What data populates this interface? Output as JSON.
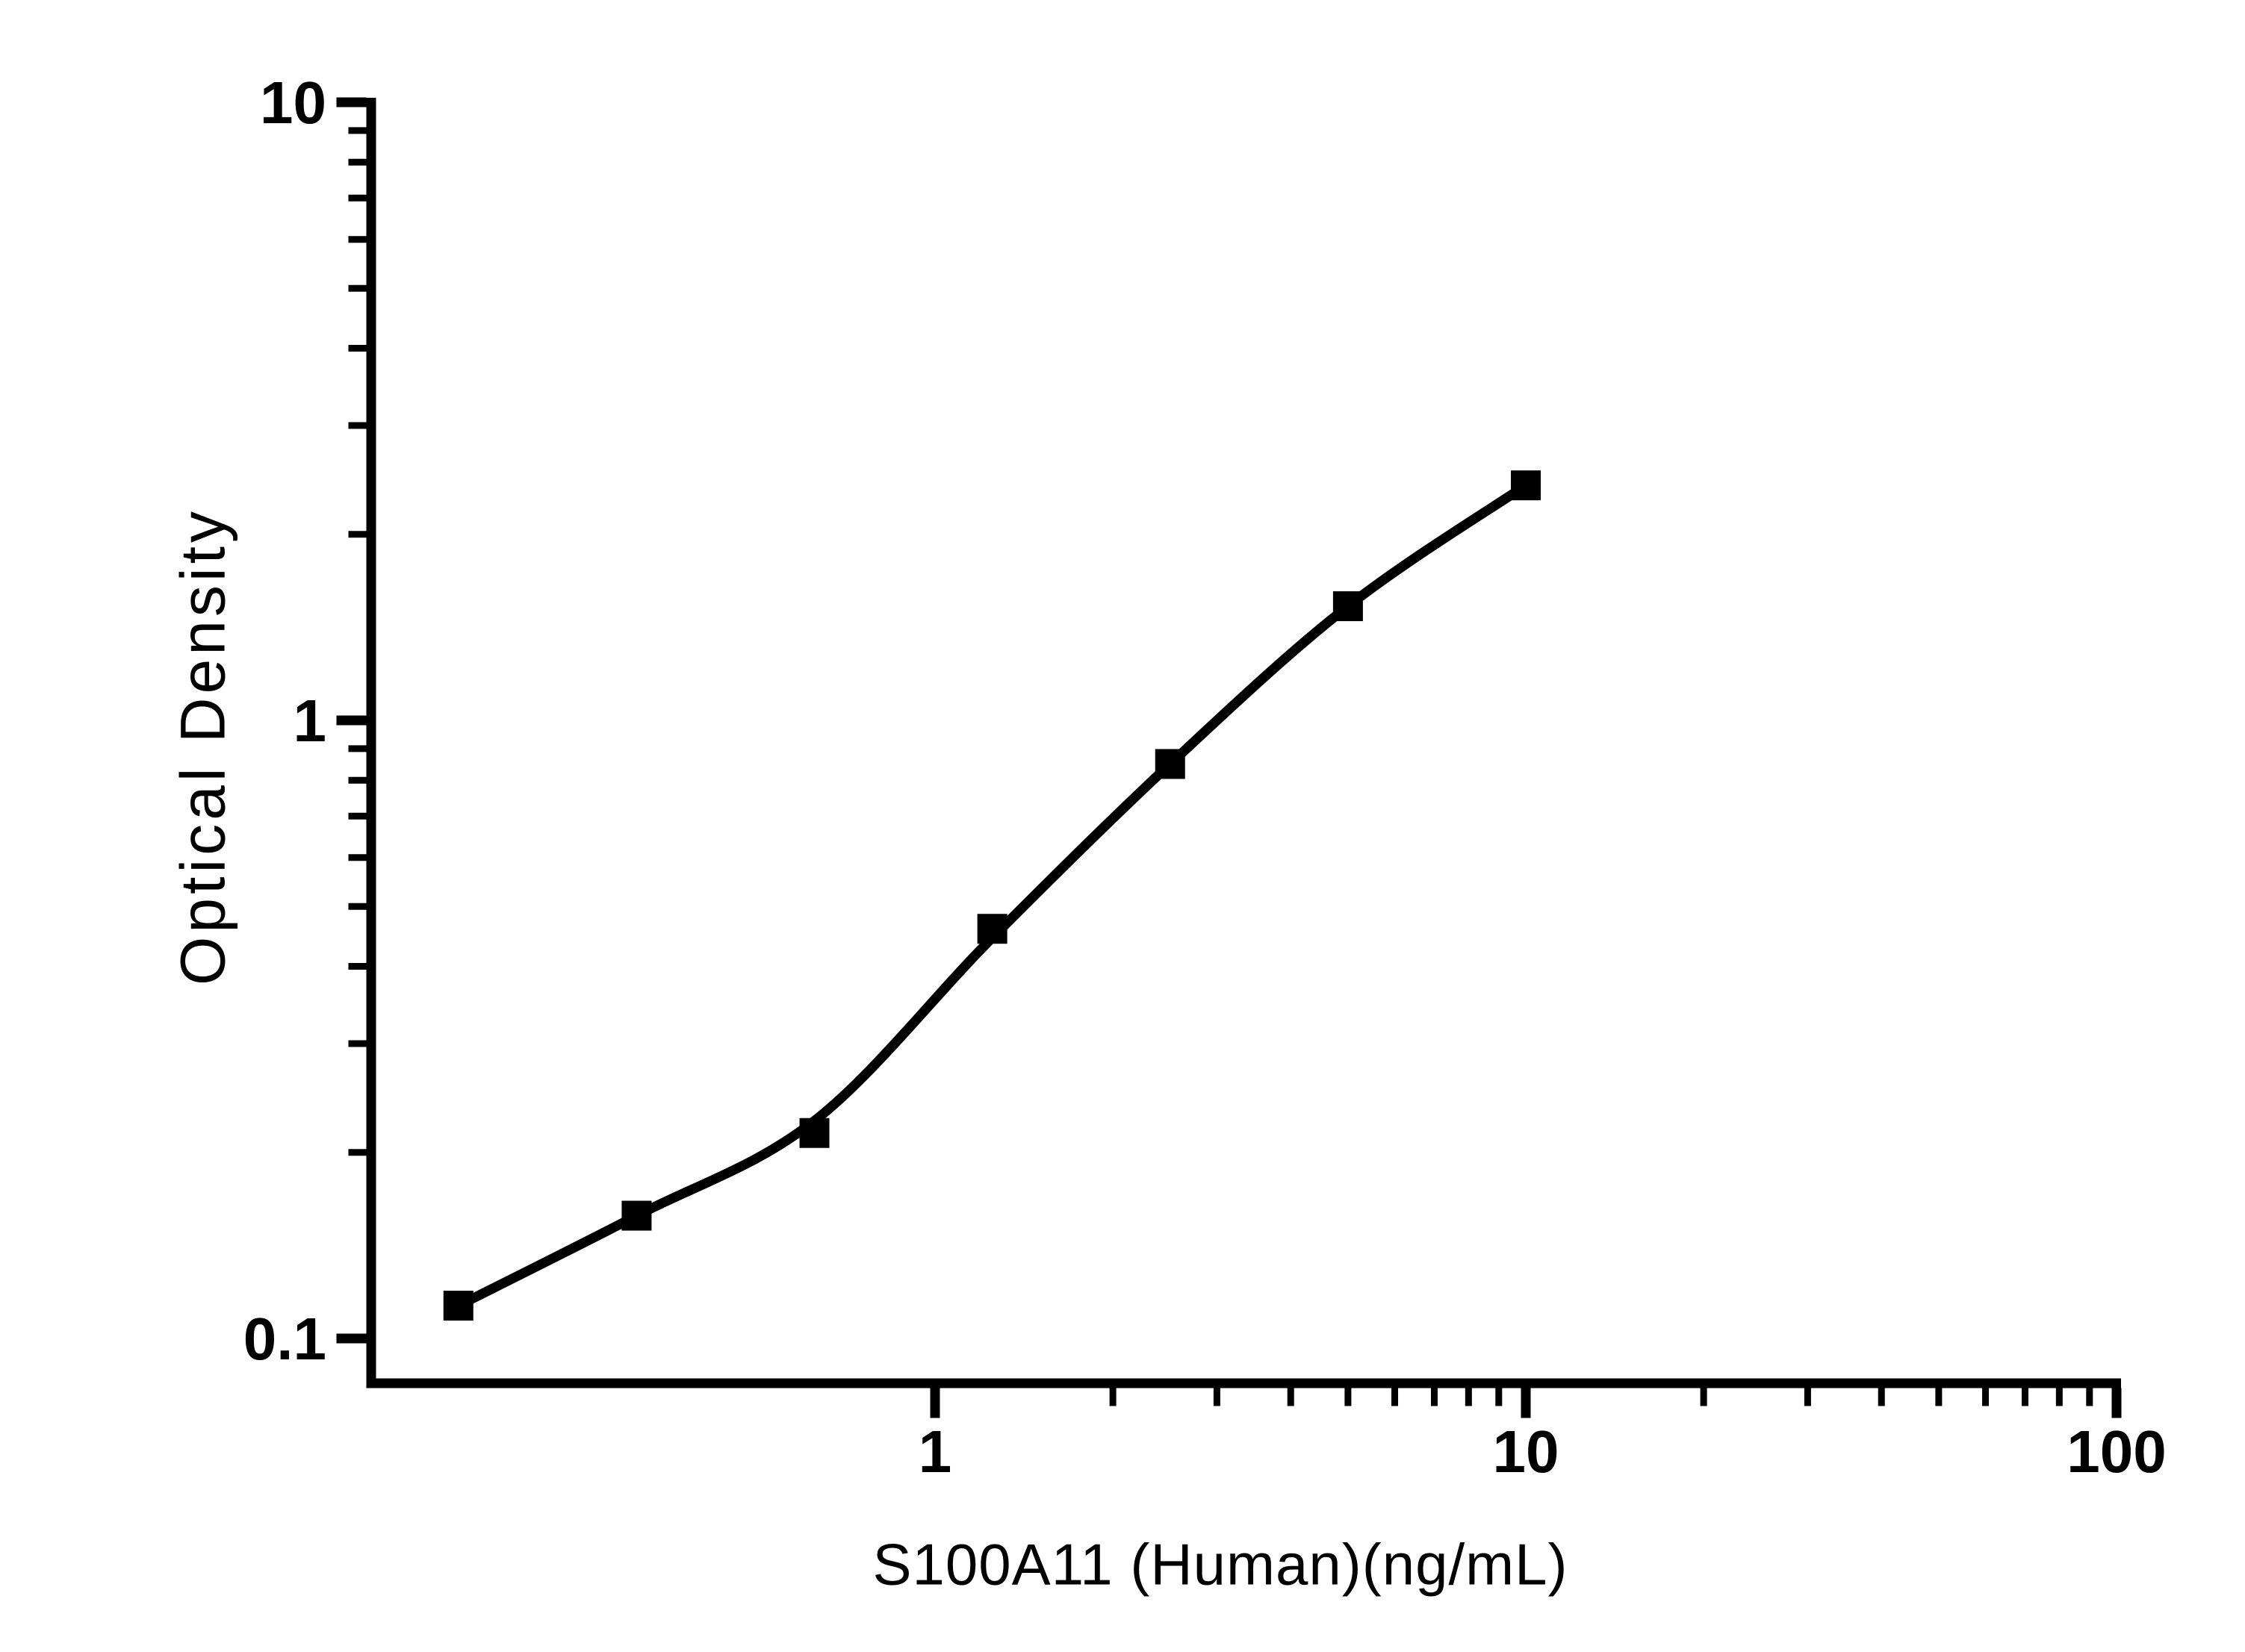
{
  "figure": {
    "background": "#ffffff",
    "ink_color": "#000000"
  },
  "chart_data": {
    "type": "scatter",
    "title": "",
    "xlabel": "S100A11 (Human)(ng/mL)",
    "ylabel": "Optical Density",
    "x_scale": "log",
    "y_scale": "log",
    "xlim": [
      0.111,
      101
    ],
    "ylim": [
      0.085,
      10
    ],
    "grid": false,
    "legend": null,
    "marker": "filled-square",
    "line_color": "#000000",
    "marker_color": "#000000",
    "x_major_ticks": [
      1,
      10,
      100
    ],
    "x_tick_labels": [
      "1",
      "10",
      "100"
    ],
    "x_minor_ticks": [
      2,
      3,
      4,
      5,
      6,
      7,
      8,
      9,
      20,
      30,
      40,
      50,
      60,
      70,
      80,
      90
    ],
    "y_major_ticks": [
      10,
      1,
      0.1
    ],
    "y_tick_labels": [
      "10",
      "1",
      "0.1"
    ],
    "y_minor_ticks": [
      9,
      8,
      7,
      6,
      5,
      4,
      3,
      2,
      0.9,
      0.8,
      0.7,
      0.6,
      0.5,
      0.4,
      0.3,
      0.2
    ],
    "points": [
      {
        "x": 0.156,
        "y": 0.113
      },
      {
        "x": 0.3125,
        "y": 0.158
      },
      {
        "x": 0.625,
        "y": 0.215
      },
      {
        "x": 1.25,
        "y": 0.46
      },
      {
        "x": 2.5,
        "y": 0.85
      },
      {
        "x": 5,
        "y": 1.53
      },
      {
        "x": 10,
        "y": 2.4
      }
    ],
    "fit_curve_points": [
      {
        "x": 0.156,
        "y": 0.113
      },
      {
        "x": 0.3125,
        "y": 0.158
      },
      {
        "x": 0.625,
        "y": 0.225
      },
      {
        "x": 1.25,
        "y": 0.445
      },
      {
        "x": 2.5,
        "y": 0.85
      },
      {
        "x": 5,
        "y": 1.53
      },
      {
        "x": 10,
        "y": 2.4
      }
    ]
  }
}
